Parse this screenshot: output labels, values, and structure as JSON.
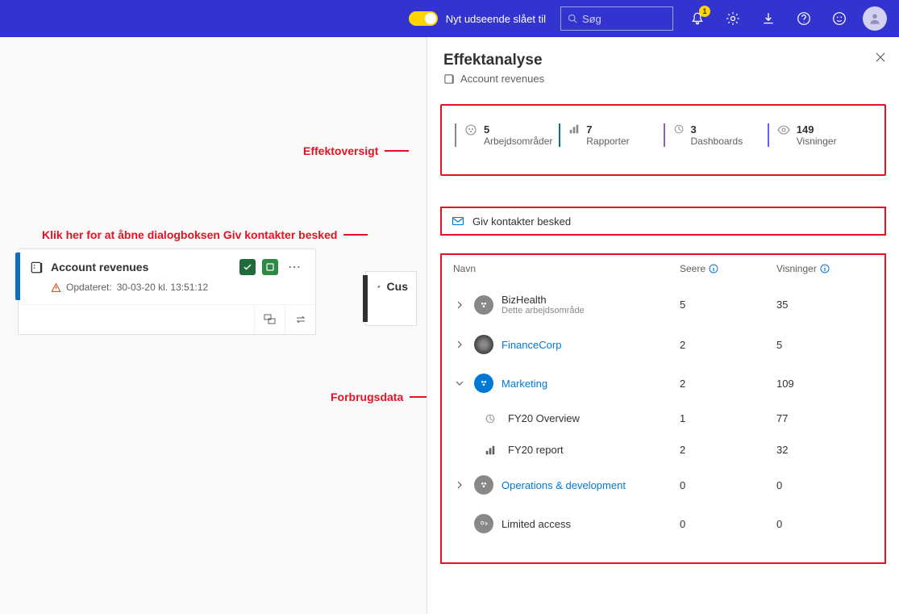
{
  "topbar": {
    "toggle_label": "Nyt udseende slået til",
    "search_placeholder": "Søg",
    "notification_badge": "1"
  },
  "lineage": {
    "title": "Account revenues",
    "updated_prefix": "Opdateret:",
    "updated_time": "30-03-20 kl. 13:51:12",
    "right_label": "Cus"
  },
  "panel": {
    "title": "Effektanalyse",
    "subtitle": "Account revenues",
    "notify_label": "Giv kontakter besked"
  },
  "stats": [
    {
      "value": "5",
      "label": "Arbejdsområder",
      "bar_color": "#8a8886"
    },
    {
      "value": "7",
      "label": "Rapporter",
      "bar_color": "#03787c"
    },
    {
      "value": "3",
      "label": "Dashboards",
      "bar_color": "#9b59b6"
    },
    {
      "value": "149",
      "label": "Visninger",
      "bar_color": "#4f6bed"
    }
  ],
  "table": {
    "headers": {
      "name": "Navn",
      "viewers": "Seere",
      "views": "Visninger"
    },
    "rows": [
      {
        "expand": "right",
        "icon": "ws-gray",
        "name": "BizHealth",
        "sub": "Dette arbejdsområde",
        "link": false,
        "viewers": "5",
        "views": "35"
      },
      {
        "expand": "right",
        "icon": "ws-img",
        "name": "FinanceCorp",
        "sub": "",
        "link": true,
        "viewers": "2",
        "views": "5"
      },
      {
        "expand": "down",
        "icon": "ws-blue",
        "name": "Marketing",
        "sub": "",
        "link": true,
        "viewers": "2",
        "views": "109"
      },
      {
        "child": true,
        "icon": "dash",
        "name": "FY20 Overview",
        "viewers": "1",
        "views": "77"
      },
      {
        "child": true,
        "icon": "report",
        "name": "FY20 report",
        "viewers": "2",
        "views": "32"
      },
      {
        "expand": "right",
        "icon": "ws-gray",
        "name": "Operations & development",
        "sub": "",
        "link": true,
        "viewers": "0",
        "views": "0"
      },
      {
        "expand": "none",
        "icon": "limited",
        "name": "Limited access",
        "sub": "",
        "link": false,
        "viewers": "0",
        "views": "0"
      }
    ]
  },
  "callouts": {
    "overview": "Effektoversigt",
    "notify": "Klik her for at åbne dialogboksen Giv kontakter besked",
    "usage": "Forbrugsdata"
  }
}
